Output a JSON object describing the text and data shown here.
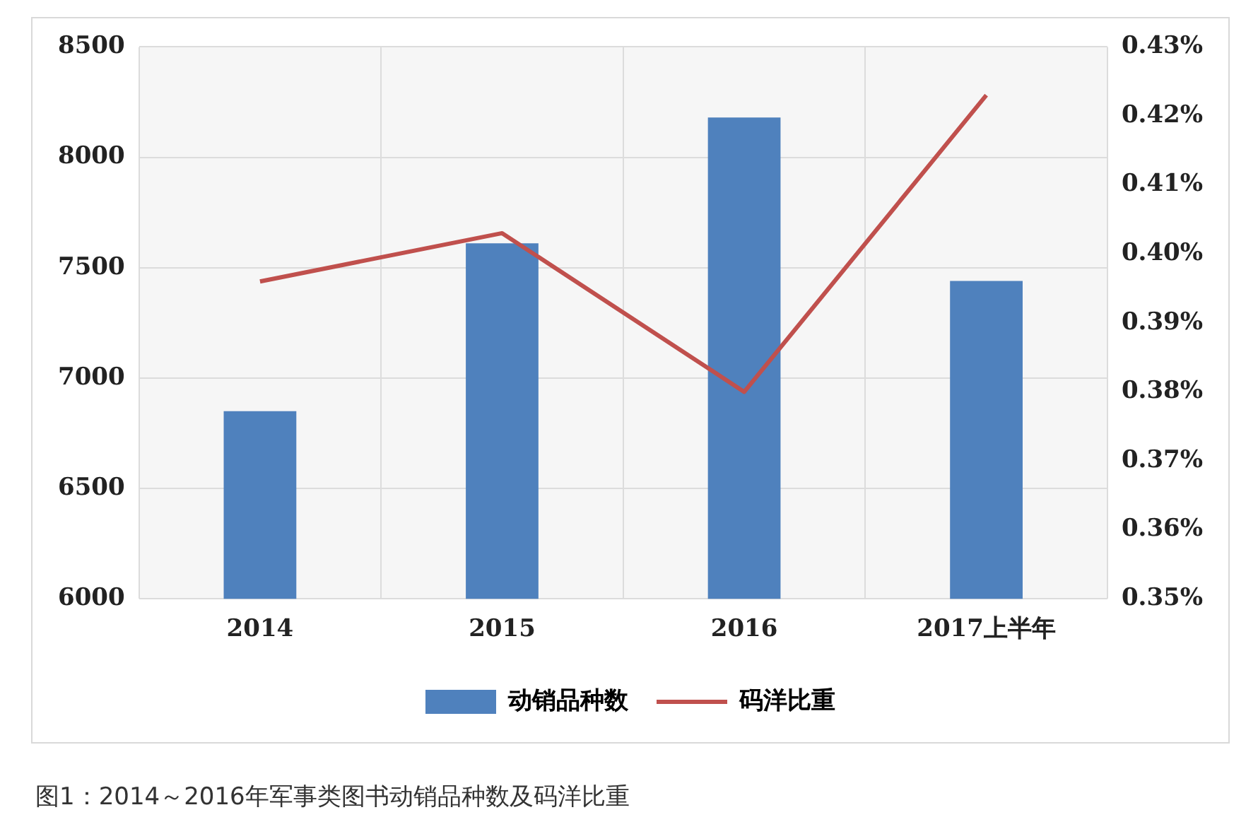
{
  "chart_data": {
    "type": "bar",
    "categories": [
      "2014",
      "2015",
      "2016",
      "2017上半年"
    ],
    "series": [
      {
        "name": "动销品种数",
        "color": "#4f81bd",
        "values": [
          6850,
          7610,
          8180,
          7440
        ]
      },
      {
        "name": "码洋比重",
        "type": "line",
        "axis": "y2",
        "color": "#c0504d",
        "values": [
          0.396,
          0.403,
          0.38,
          0.423
        ]
      }
    ],
    "ylim": [
      6000,
      8500
    ],
    "yticks": [
      6000,
      6500,
      7000,
      7500,
      8000,
      8500
    ],
    "y2lim": [
      0.35,
      0.43
    ],
    "y2ticks": [
      {
        "value": 0.35,
        "label": "0.35%"
      },
      {
        "value": 0.36,
        "label": "0.36%"
      },
      {
        "value": 0.37,
        "label": "0.37%"
      },
      {
        "value": 0.38,
        "label": "0.38%"
      },
      {
        "value": 0.39,
        "label": "0.39%"
      },
      {
        "value": 0.4,
        "label": "0.40%"
      },
      {
        "value": 0.41,
        "label": "0.41%"
      },
      {
        "value": 0.42,
        "label": "0.42%"
      },
      {
        "value": 0.43,
        "label": "0.43%"
      }
    ],
    "grid": true,
    "legend": "bottom",
    "marker": "none",
    "annotations": [
      "图1：2014～2016年军事类图书动销品种数及码洋比重"
    ]
  }
}
